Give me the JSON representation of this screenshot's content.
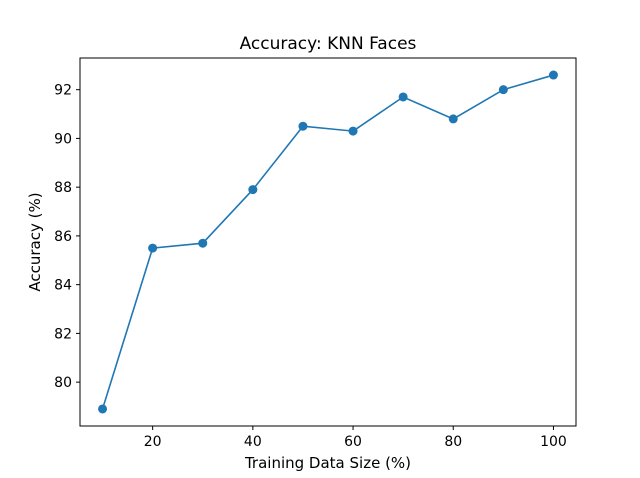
{
  "chart_data": {
    "type": "line",
    "title": "Accuracy: KNN Faces",
    "xlabel": "Training Data Size (%)",
    "ylabel": "Accuracy (%)",
    "x": [
      10,
      20,
      30,
      40,
      50,
      60,
      70,
      80,
      90,
      100
    ],
    "series": [
      {
        "values": [
          78.9,
          85.5,
          85.7,
          87.9,
          90.5,
          90.3,
          91.7,
          90.8,
          92.0,
          92.6
        ],
        "color": "#1f77b4",
        "marker": "circle"
      }
    ],
    "xlim": [
      5.5,
      104.5
    ],
    "ylim": [
      78.2,
      93.3
    ],
    "xticks": [
      20,
      40,
      60,
      80,
      100
    ],
    "yticks": [
      80,
      82,
      84,
      86,
      88,
      90,
      92
    ],
    "grid": false,
    "legend": "none"
  }
}
